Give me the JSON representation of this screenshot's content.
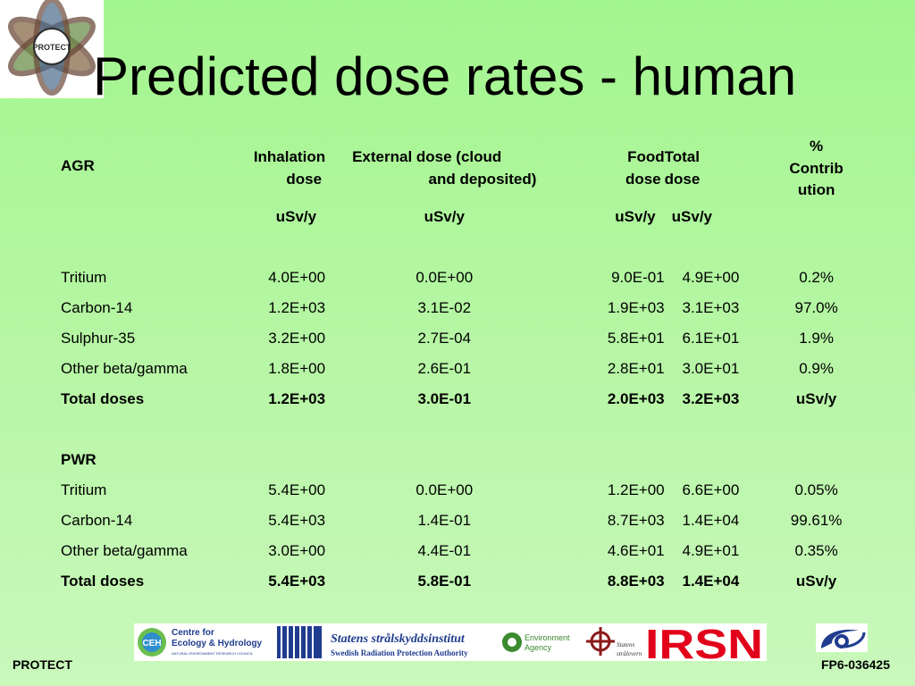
{
  "logo": {
    "text": "PROTECT",
    "icon": "protect-atom-logo"
  },
  "title": "Predicted dose rates - human",
  "table": {
    "headers": [
      [
        "AGR"
      ],
      [
        "Inhalation",
        "dose"
      ],
      [
        "External dose (cloud",
        "and deposited)"
      ],
      [
        "Food",
        "dose"
      ],
      [
        "Total",
        "dose"
      ],
      [
        "%",
        "Contrib",
        "ution"
      ]
    ],
    "units": [
      "",
      "uSv/y",
      "uSv/y",
      "uSv/y",
      "uSv/y",
      ""
    ],
    "agr_rows": [
      [
        "Tritium",
        "4.0E+00",
        "0.0E+00",
        "9.0E-01",
        "4.9E+00",
        "0.2%"
      ],
      [
        "Carbon-14",
        "1.2E+03",
        "3.1E-02",
        "1.9E+03",
        "3.1E+03",
        "97.0%"
      ],
      [
        "Sulphur-35",
        "3.2E+00",
        "2.7E-04",
        "5.8E+01",
        "6.1E+01",
        "1.9%"
      ],
      [
        "Other beta/gamma",
        "1.8E+00",
        "2.6E-01",
        "2.8E+01",
        "3.0E+01",
        "0.9%"
      ]
    ],
    "agr_total": [
      "Total doses",
      "1.2E+03",
      "3.0E-01",
      "2.0E+03",
      "3.2E+03",
      "uSv/y"
    ],
    "pwr_label": "PWR",
    "pwr_rows": [
      [
        "Tritium",
        "5.4E+00",
        "0.0E+00",
        "1.2E+00",
        "6.6E+00",
        "0.05%"
      ],
      [
        "Carbon-14",
        "5.4E+03",
        "1.4E-01",
        "8.7E+03",
        "1.4E+04",
        "99.61%"
      ],
      [
        "Other beta/gamma",
        "3.0E+00",
        "4.4E-01",
        "4.6E+01",
        "4.9E+01",
        "0.35%"
      ]
    ],
    "pwr_total": [
      "Total doses",
      "5.4E+03",
      "5.8E-01",
      "8.8E+03",
      "1.4E+04",
      "uSv/y"
    ]
  },
  "logos": {
    "ceh": {
      "circle": "CEH",
      "line1": "Centre for",
      "line2": "Ecology & Hydrology",
      "line3": "NATURAL ENVIRONMENT RESEARCH COUNCIL"
    },
    "ssi": {
      "line1": "Statens strålskyddsinstitut",
      "line2": "Swedish Radiation Protection Authority"
    },
    "ea": {
      "line1": "Environment",
      "line2": "Agency"
    },
    "ssm": {
      "line1": "Statens",
      "line2": "strålevern"
    },
    "irsn": {
      "text": "IRSN"
    }
  },
  "footer": {
    "left": "PROTECT",
    "right": "FP6-036425"
  },
  "colors": {
    "accent_blue": "#1f3c8f",
    "irsn_red": "#e2001a",
    "ea_green": "#3a8a2e"
  }
}
